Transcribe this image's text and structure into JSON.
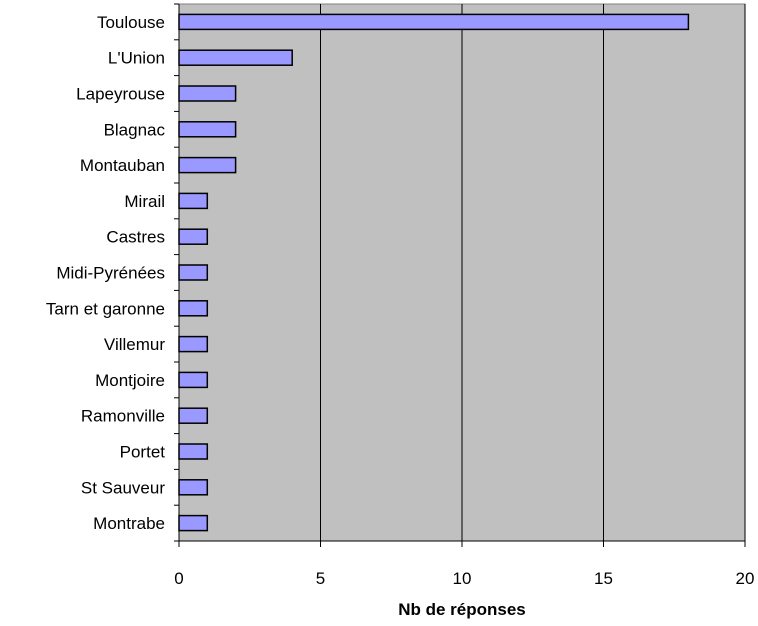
{
  "chart_data": {
    "type": "bar",
    "orientation": "horizontal",
    "categories": [
      "Toulouse",
      "L'Union",
      "Lapeyrouse",
      "Blagnac",
      "Montauban",
      "Mirail",
      "Castres",
      "Midi-Pyrénées",
      "Tarn et garonne",
      "Villemur",
      "Montjoire",
      "Ramonville",
      "Portet",
      "St Sauveur",
      "Montrabe"
    ],
    "values": [
      18,
      4,
      2,
      2,
      2,
      1,
      1,
      1,
      1,
      1,
      1,
      1,
      1,
      1,
      1
    ],
    "xlabel": "Nb de réponses",
    "xlim": [
      0,
      20
    ],
    "xticks": [
      0,
      5,
      10,
      15,
      20
    ],
    "grid": true,
    "colors": {
      "bar": "#9999ff",
      "plot_background": "#c0c0c0"
    }
  }
}
